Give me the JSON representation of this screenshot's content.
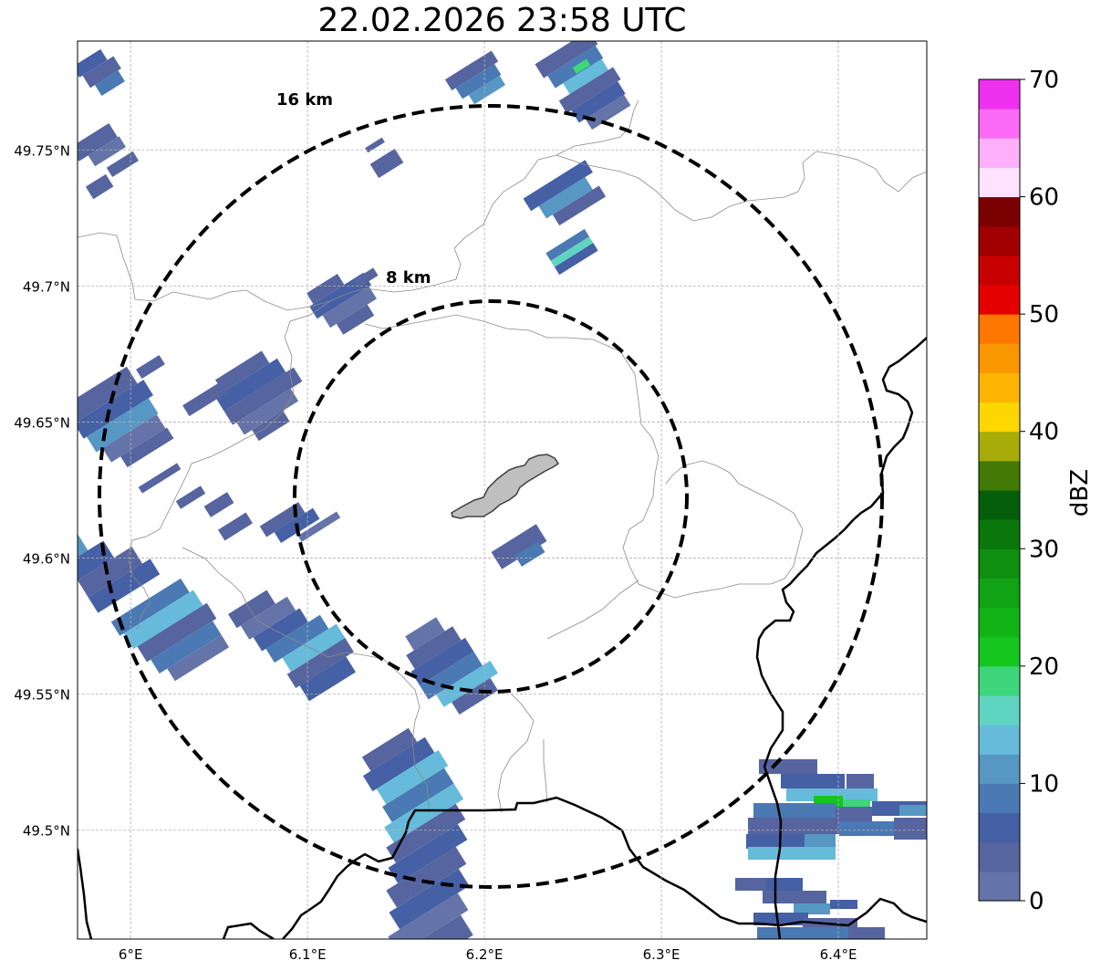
{
  "title": "22.02.2026 23:58 UTC",
  "map": {
    "x_ticks": [
      "6°E",
      "6.1°E",
      "6.2°E",
      "6.3°E",
      "6.4°E"
    ],
    "y_ticks": [
      "49.75°N",
      "49.7°N",
      "49.65°N",
      "49.6°N",
      "49.55°N",
      "49.5°N"
    ],
    "x_tick_values": [
      6.0,
      6.1,
      6.2,
      6.3,
      6.4
    ],
    "y_tick_values": [
      49.75,
      49.7,
      49.65,
      49.6,
      49.55,
      49.5
    ],
    "lon_range": [
      5.97,
      6.45
    ],
    "lat_range": [
      49.46,
      49.79
    ],
    "gridlines": true,
    "range_rings": [
      {
        "label": "8 km",
        "radius_km": 8
      },
      {
        "label": "16 km",
        "radius_km": 16
      }
    ],
    "center": {
      "lon": 6.2,
      "lat": 49.623
    }
  },
  "colorbar": {
    "label": "dBZ",
    "tick_labels": [
      "0",
      "10",
      "20",
      "30",
      "40",
      "50",
      "60",
      "70"
    ],
    "colors": [
      "#6474a8",
      "#56659f",
      "#4560a5",
      "#4a79b4",
      "#5697c4",
      "#65bbd9",
      "#5fd4c0",
      "#3dd67a",
      "#14c61e",
      "#12b317",
      "#10a313",
      "#0e8f10",
      "#0a770d",
      "#045e0a",
      "#437a06",
      "#a8ac08",
      "#fed600",
      "#fbb500",
      "#fa9600",
      "#fe7700",
      "#e50000",
      "#c80000",
      "#a00000",
      "#7b0000",
      "#ffe2fe",
      "#feaff9",
      "#fc6bf6",
      "#ee30ef"
    ]
  }
}
